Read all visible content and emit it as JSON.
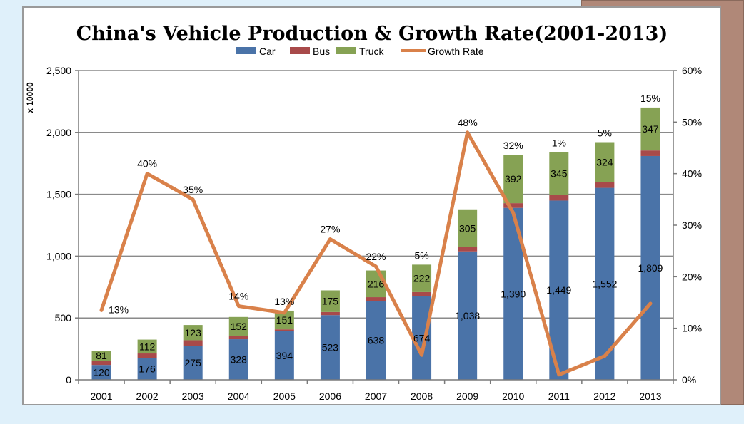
{
  "chart_data": {
    "type": "bar",
    "title": "China's Vehicle Production & Growth Rate(2001-2013)",
    "ylabel": "x 10000",
    "y2label": "",
    "ylim": [
      0,
      2500
    ],
    "y2lim": [
      0,
      60
    ],
    "yticks": [
      "0",
      "500",
      "1,000",
      "1,500",
      "2,000",
      "2,500"
    ],
    "y2ticks": [
      "0%",
      "10%",
      "20%",
      "30%",
      "40%",
      "50%",
      "60%"
    ],
    "stacked": true,
    "grid": true,
    "legend_position": "top",
    "categories": [
      "2001",
      "2002",
      "2003",
      "2004",
      "2005",
      "2006",
      "2007",
      "2008",
      "2009",
      "2010",
      "2011",
      "2012",
      "2013"
    ],
    "series": [
      {
        "name": "Car",
        "color": "#4a73a8",
        "values": [
          120,
          176,
          275,
          328,
          394,
          523,
          638,
          674,
          1038,
          1390,
          1449,
          1552,
          1809
        ],
        "labels": [
          "120",
          "176",
          "275",
          "328",
          "394",
          "523",
          "638",
          "674",
          "1,038",
          "1,390",
          "1,449",
          "1,552",
          "1,809"
        ]
      },
      {
        "name": "Bus",
        "color": "#a84a4a",
        "values": [
          35,
          37,
          45,
          28,
          14,
          25,
          30,
          35,
          35,
          38,
          45,
          45,
          45
        ]
      },
      {
        "name": "Truck",
        "color": "#86a254",
        "values": [
          81,
          112,
          123,
          152,
          151,
          175,
          216,
          222,
          305,
          392,
          345,
          324,
          347
        ],
        "labels": [
          "81",
          "112",
          "123",
          "152",
          "151",
          "175",
          "216",
          "222",
          "305",
          "392",
          "345",
          "324",
          "347"
        ]
      }
    ],
    "line_series": {
      "name": "Growth Rate",
      "color": "#d9814a",
      "axis": "right",
      "values": [
        13.5,
        40,
        35,
        14.3,
        13,
        27.3,
        22,
        4.8,
        48,
        32.4,
        1,
        4.6,
        14.8
      ],
      "labels": [
        "13%",
        "40%",
        "35%",
        "14%",
        "13%",
        "27%",
        "22%",
        "5%",
        "48%",
        "32%",
        "1%",
        "5%",
        "15%"
      ]
    }
  }
}
